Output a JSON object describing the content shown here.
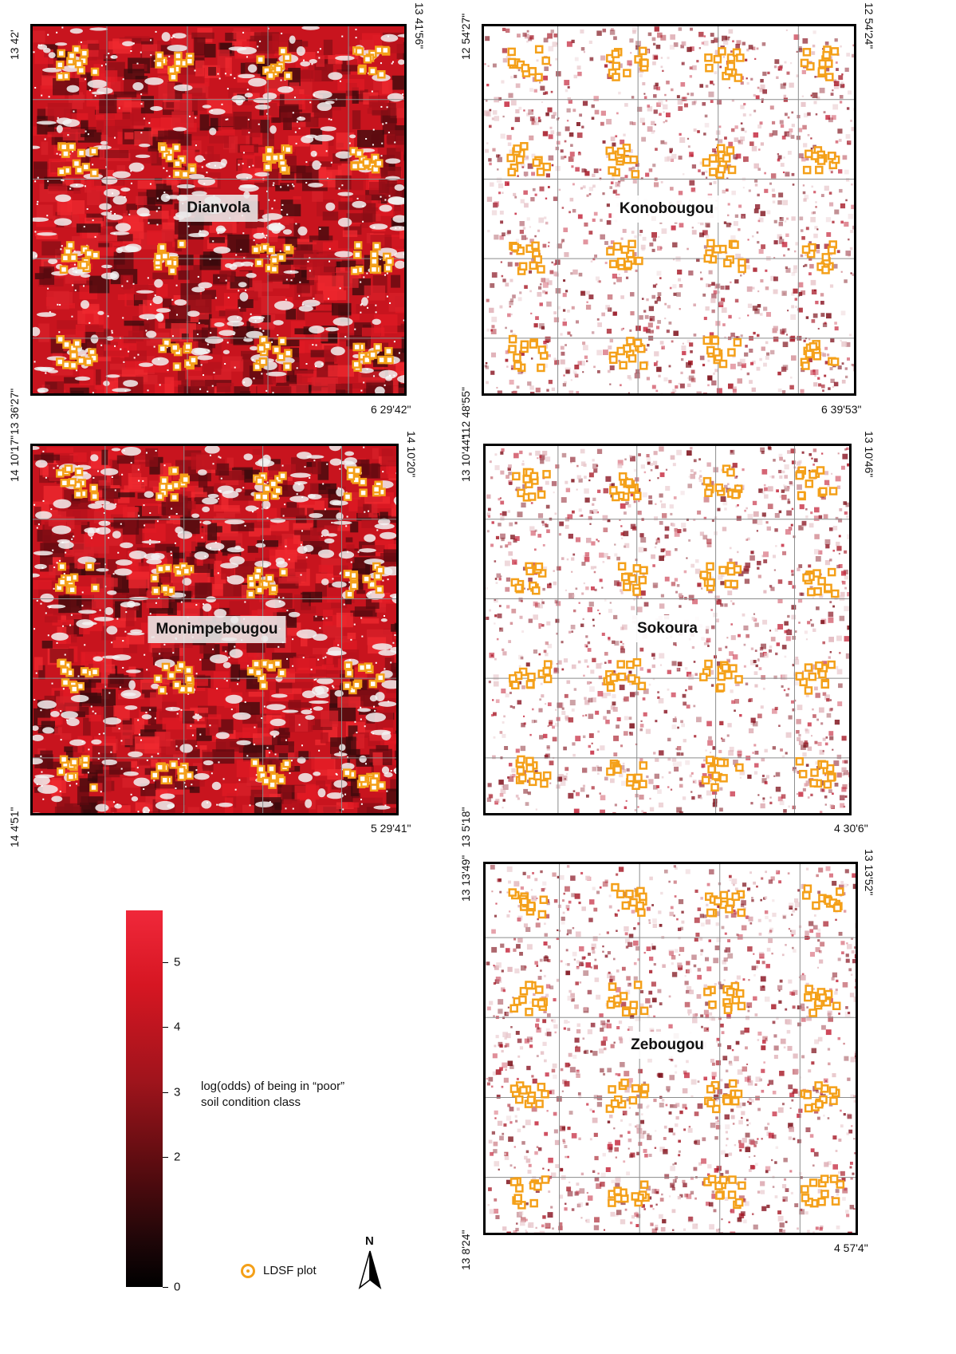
{
  "colors": {
    "accent_red": "#e0141e",
    "dark_red": "#7a0a14",
    "plot_orange": "#f4a019",
    "frame": "#000000",
    "grid": "#8c8c8c"
  },
  "maps": [
    {
      "id": "dianvola",
      "site": "Dianvola",
      "corner_tl": "13 42'",
      "corner_tr": "13 41'56\"",
      "corner_bl": "13 36'27\"",
      "corner_br": "6 29'42\"",
      "style": "dense"
    },
    {
      "id": "konobougou",
      "site": "Konobougou",
      "corner_tl": "12 54'27\"",
      "corner_tr": "12 54'24\"",
      "corner_bl": "112 48'55\"",
      "corner_br": "6 39'53\"",
      "style": "sparse"
    },
    {
      "id": "monimpebougou",
      "site": "Monimpebougou",
      "corner_tl": "14 10'17\"",
      "corner_tr": "14 10'20\"",
      "corner_bl": "14 4'51\"",
      "corner_br": "5 29'41\"",
      "style": "dense"
    },
    {
      "id": "sokoura",
      "site": "Sokoura",
      "corner_tl": "13 10'44\"",
      "corner_tr": "13 10'46\"",
      "corner_bl": "13 5'18\"",
      "corner_br": "4 30'6\"",
      "style": "sparse"
    },
    {
      "id": "zebougou",
      "site": "Zebougou",
      "corner_tl": "13 13'49\"",
      "corner_tr": "13 13'52\"",
      "corner_bl": "13 8'24\"",
      "corner_br": "4 57'4\"",
      "style": "sparse"
    }
  ],
  "legend": {
    "title_line1": "log(odds) of being in “poor”",
    "title_line2": "soil condition class",
    "ticks": [
      "5",
      "4",
      "3",
      "2",
      "0"
    ],
    "tick_values": [
      5,
      4,
      3,
      2,
      0
    ],
    "scale_max": 5.8,
    "plot_label": "LDSF plot",
    "north_label": "N"
  }
}
